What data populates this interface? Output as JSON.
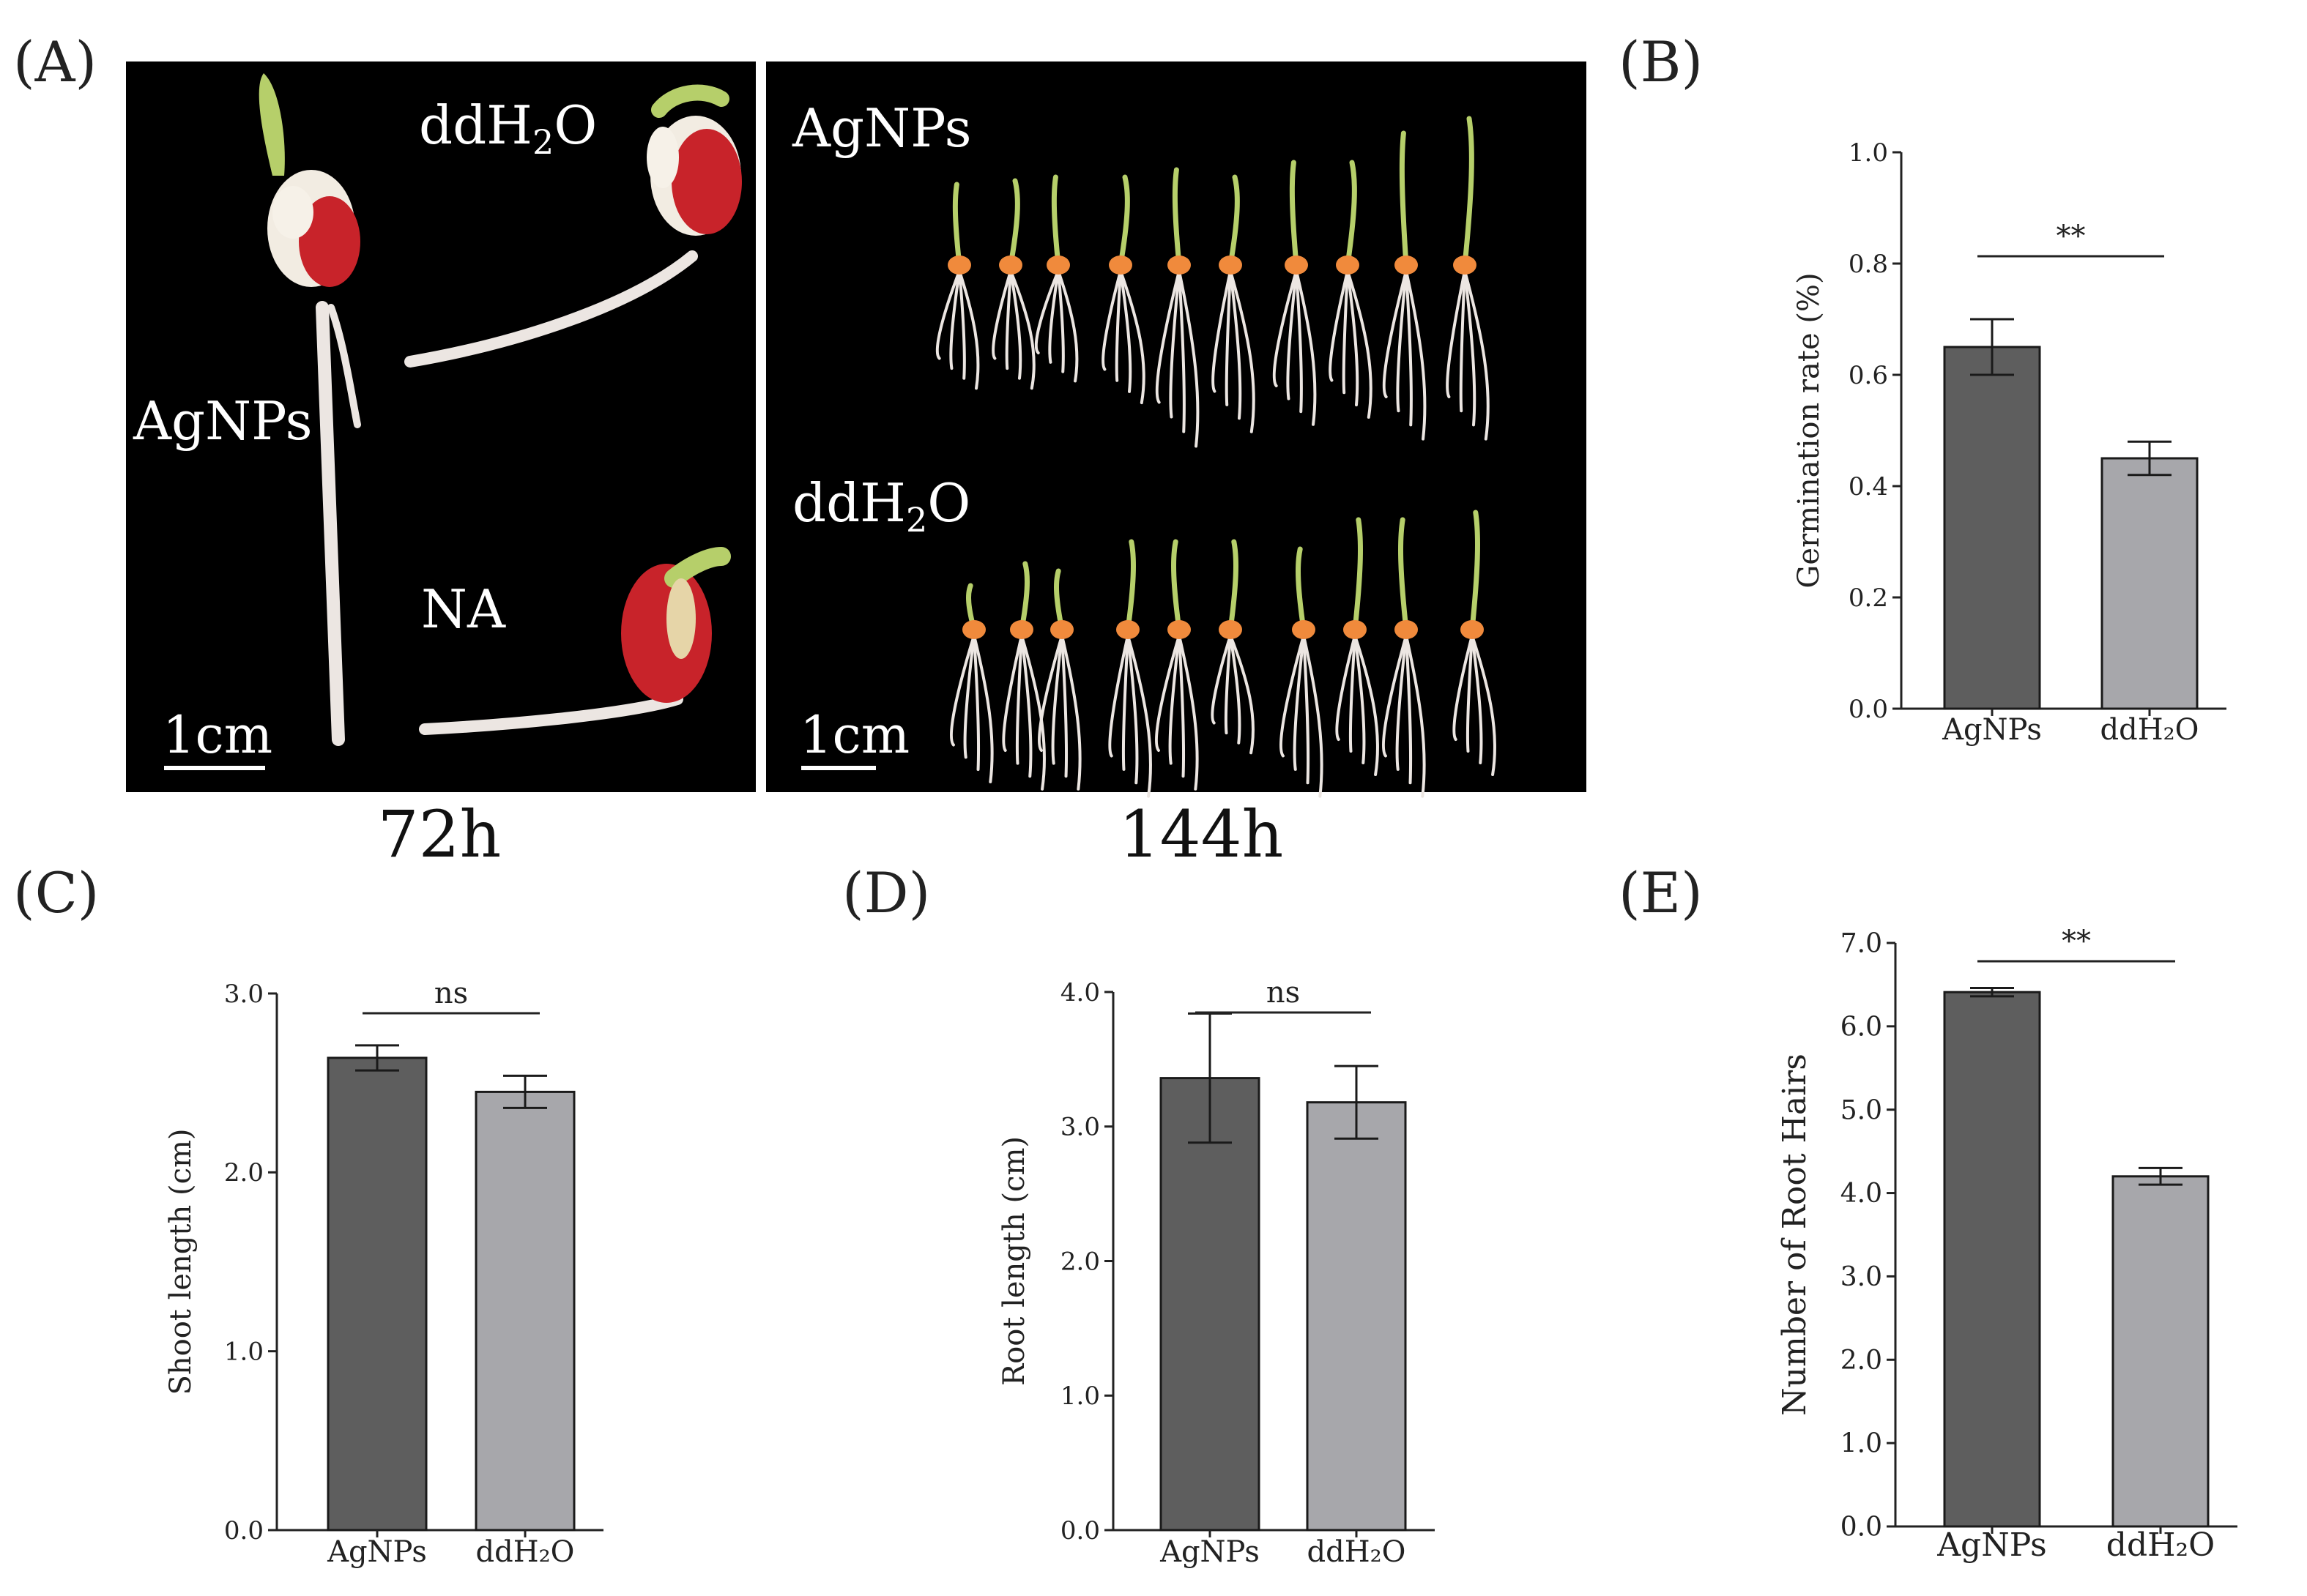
{
  "panels": {
    "a": "(A)",
    "b": "(B)",
    "c": "(C)",
    "d": "(D)",
    "e": "(E)"
  },
  "photo_a": {
    "labels": [
      "AgNPs",
      "ddH",
      "2",
      "O",
      "NA"
    ],
    "scale_bar": "1cm",
    "time": "72h"
  },
  "photo_144": {
    "labels": [
      "AgNPs",
      "ddH",
      "2",
      "O"
    ],
    "scale_bar": "1cm",
    "time": "144h"
  },
  "colors": {
    "agnps_bar": "#5e5e5e",
    "ddh2o_bar": "#a7a7ab",
    "photo_bg": "#000000",
    "seed_red": "#c8232a",
    "shoot_green": "#b6cf6a",
    "root_white": "#ece6e2"
  },
  "chart_data": [
    {
      "id": "B",
      "type": "bar",
      "categories": [
        "AgNPs",
        "ddH₂O"
      ],
      "values": [
        0.65,
        0.45
      ],
      "errors": [
        0.05,
        0.03
      ],
      "ylabel": "Germination rate (%)",
      "ylim": [
        0,
        1.0
      ],
      "yticks": [
        "0.0",
        "0.2",
        "0.4",
        "0.6",
        "0.8",
        "1.0"
      ],
      "significance": "**"
    },
    {
      "id": "C",
      "type": "bar",
      "categories": [
        "AgNPs",
        "ddH₂O"
      ],
      "values": [
        2.64,
        2.45
      ],
      "errors": [
        0.07,
        0.09
      ],
      "ylabel": "Shoot length (cm)",
      "ylim": [
        0,
        3.0
      ],
      "yticks": [
        "0.0",
        "1.0",
        "2.0",
        "3.0"
      ],
      "significance": "ns"
    },
    {
      "id": "D",
      "type": "bar",
      "categories": [
        "AgNPs",
        "ddH₂O"
      ],
      "values": [
        3.36,
        3.18
      ],
      "errors": [
        0.48,
        0.27
      ],
      "ylabel": "Root length (cm)",
      "ylim": [
        0,
        4.0
      ],
      "yticks": [
        "0.0",
        "1.0",
        "2.0",
        "3.0",
        "4.0"
      ],
      "significance": "ns"
    },
    {
      "id": "E",
      "type": "bar",
      "categories": [
        "AgNPs",
        "ddH₂O"
      ],
      "values": [
        6.41,
        4.2
      ],
      "errors": [
        0.05,
        0.1
      ],
      "ylabel": "Number of Root Hairs",
      "ylim": [
        0,
        7.0
      ],
      "yticks": [
        "0.0",
        "1.0",
        "2.0",
        "3.0",
        "4.0",
        "5.0",
        "6.0",
        "7.0"
      ],
      "significance": "**"
    }
  ]
}
